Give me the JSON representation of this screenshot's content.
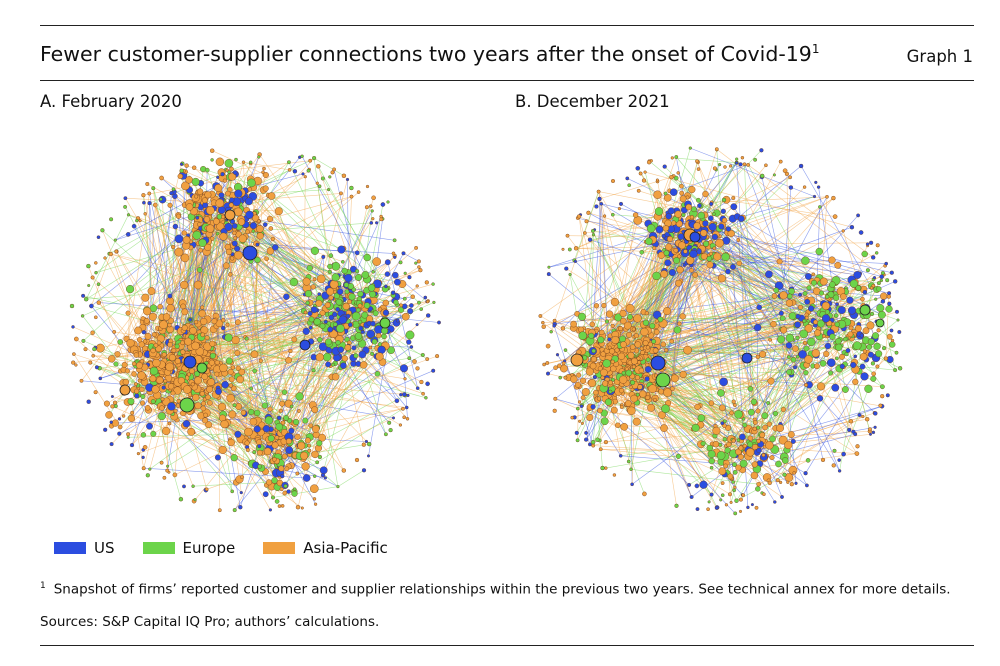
{
  "header": {
    "title": "Fewer customer-supplier connections two years after the onset of Covid-19",
    "title_footnote_marker": "1",
    "graph_number": "Graph 1"
  },
  "chart_data": {
    "type": "network",
    "panels": [
      {
        "id": "A",
        "title": "A. February 2020"
      },
      {
        "id": "B",
        "title": "B. December 2021"
      }
    ],
    "legend": [
      {
        "label": "US",
        "color": "#2b4de0"
      },
      {
        "label": "Europe",
        "color": "#6cd44a"
      },
      {
        "label": "Asia-Pacific",
        "color": "#f0a040"
      }
    ]
  },
  "footnote": {
    "marker": "1",
    "text": "Snapshot of firms’ reported customer and supplier relationships within the previous two years. See technical annex for more details."
  },
  "sources": "Sources: S&P Capital IQ Pro; authors’ calculations."
}
